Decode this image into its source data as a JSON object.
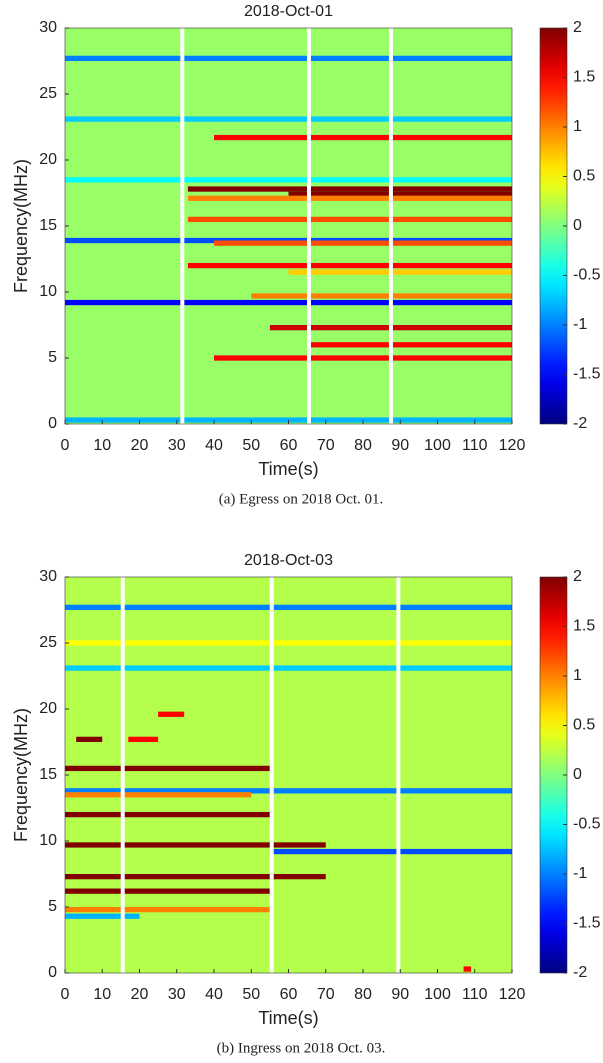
{
  "chart_data": [
    {
      "type": "heatmap",
      "title": "2018-Oct-01",
      "xlabel": "Time(s)",
      "ylabel": "Frequency(MHz)",
      "caption": "(a)  Egress on 2018 Oct. 01.",
      "xlim": [
        0,
        120
      ],
      "xticks": [
        0,
        10,
        20,
        30,
        40,
        50,
        60,
        70,
        80,
        90,
        100,
        110,
        120
      ],
      "ylim": [
        0,
        30
      ],
      "yticks": [
        0,
        5,
        10,
        15,
        20,
        25,
        30
      ],
      "clim": [
        -2,
        2
      ],
      "cticks": [
        -2,
        -1.5,
        -1,
        -0.5,
        0,
        0.5,
        1,
        1.5,
        2
      ],
      "colormap": "jet",
      "background_value": 0.1,
      "gaps": [
        31.5,
        65.5,
        87.5
      ],
      "streaks": [
        {
          "f": 27.7,
          "t": [
            0,
            120
          ],
          "v": -1
        },
        {
          "f": 23.1,
          "t": [
            0,
            120
          ],
          "v": -0.7
        },
        {
          "f": 21.7,
          "t": [
            40,
            120
          ],
          "v": 1.5
        },
        {
          "f": 18.5,
          "t": [
            0,
            120
          ],
          "v": -0.5
        },
        {
          "f": 17.8,
          "t": [
            33,
            120
          ],
          "v": 2
        },
        {
          "f": 17.4,
          "t": [
            60,
            120
          ],
          "v": 2
        },
        {
          "f": 17.1,
          "t": [
            33,
            120
          ],
          "v": 1
        },
        {
          "f": 15.5,
          "t": [
            33,
            120
          ],
          "v": 1.2
        },
        {
          "f": 13.9,
          "t": [
            0,
            120
          ],
          "v": -1.2
        },
        {
          "f": 13.7,
          "t": [
            40,
            120
          ],
          "v": 1.2
        },
        {
          "f": 12,
          "t": [
            33,
            120
          ],
          "v": 1.5
        },
        {
          "f": 11.5,
          "t": [
            60,
            120
          ],
          "v": 0.7
        },
        {
          "f": 9.7,
          "t": [
            50,
            120
          ],
          "v": 1
        },
        {
          "f": 9.2,
          "t": [
            0,
            120
          ],
          "v": -1.5
        },
        {
          "f": 7.3,
          "t": [
            55,
            120
          ],
          "v": 1.7
        },
        {
          "f": 6,
          "t": [
            65,
            120
          ],
          "v": 1.5
        },
        {
          "f": 5,
          "t": [
            40,
            120
          ],
          "v": 1.5
        },
        {
          "f": 0.3,
          "t": [
            0,
            120
          ],
          "v": -0.8
        }
      ]
    },
    {
      "type": "heatmap",
      "title": "2018-Oct-03",
      "xlabel": "Time(s)",
      "ylabel": "Frequency(MHz)",
      "caption": "(b)  Ingress on 2018 Oct. 03.",
      "xlim": [
        0,
        120
      ],
      "xticks": [
        0,
        10,
        20,
        30,
        40,
        50,
        60,
        70,
        80,
        90,
        100,
        110,
        120
      ],
      "ylim": [
        0,
        30
      ],
      "yticks": [
        0,
        5,
        10,
        15,
        20,
        25,
        30
      ],
      "clim": [
        -2,
        2
      ],
      "cticks": [
        -2,
        -1.5,
        -1,
        -0.5,
        0,
        0.5,
        1,
        1.5,
        2
      ],
      "colormap": "jet",
      "background_value": 0.2,
      "gaps": [
        15.5,
        55.5,
        89.5
      ],
      "streaks": [
        {
          "f": 27.7,
          "t": [
            0,
            120
          ],
          "v": -1
        },
        {
          "f": 25,
          "t": [
            0,
            120
          ],
          "v": 0.5
        },
        {
          "f": 23.1,
          "t": [
            0,
            120
          ],
          "v": -0.7
        },
        {
          "f": 19.6,
          "t": [
            25,
            32
          ],
          "v": 1.5
        },
        {
          "f": 17.7,
          "t": [
            3,
            10
          ],
          "v": 2
        },
        {
          "f": 17.7,
          "t": [
            17,
            25
          ],
          "v": 1.5
        },
        {
          "f": 15.5,
          "t": [
            0,
            55
          ],
          "v": 2
        },
        {
          "f": 13.8,
          "t": [
            0,
            120
          ],
          "v": -1
        },
        {
          "f": 13.5,
          "t": [
            0,
            50
          ],
          "v": 1
        },
        {
          "f": 12,
          "t": [
            0,
            55
          ],
          "v": 2
        },
        {
          "f": 9.7,
          "t": [
            0,
            70
          ],
          "v": 2
        },
        {
          "f": 9.2,
          "t": [
            55,
            120
          ],
          "v": -1.2
        },
        {
          "f": 7.3,
          "t": [
            0,
            70
          ],
          "v": 2
        },
        {
          "f": 6.2,
          "t": [
            0,
            55
          ],
          "v": 2
        },
        {
          "f": 4.8,
          "t": [
            0,
            55
          ],
          "v": 1
        },
        {
          "f": 4.3,
          "t": [
            0,
            20
          ],
          "v": -0.8
        },
        {
          "f": 0.3,
          "t": [
            107,
            109
          ],
          "v": 1.5
        }
      ]
    }
  ]
}
